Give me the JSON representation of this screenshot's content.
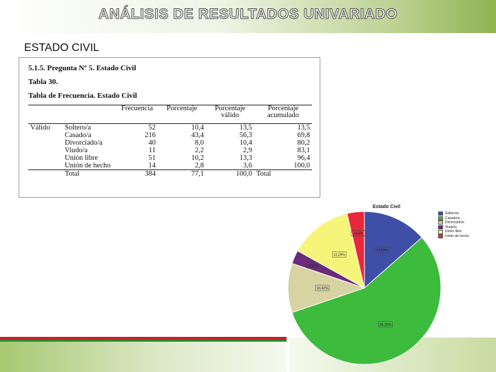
{
  "slide": {
    "title": "ANÁLISIS DE RESULTADOS UNIVARIADO",
    "subtitle": "ESTADO CIVIL"
  },
  "document": {
    "section": "5.1.5.   Pregunta Nº 5. Estado Civil",
    "table_number": "Tabla 30.",
    "table_caption": "Tabla de Frecuencia. Estado Civil",
    "headers": [
      "",
      "",
      "Frecuencia",
      "Porcentaje",
      "Porcentaje válido",
      "Porcentaje acumulado"
    ],
    "group_label": "Válido",
    "rows": [
      {
        "label": "Soltero/a",
        "freq": "52",
        "pct": "10,4",
        "valid": "13,5",
        "cum": "13,5"
      },
      {
        "label": "Casado/a",
        "freq": "216",
        "pct": "43,4",
        "valid": "56,3",
        "cum": "69,8"
      },
      {
        "label": "Divorciado/a",
        "freq": "40",
        "pct": "8,0",
        "valid": "10,4",
        "cum": "80,2"
      },
      {
        "label": "Viudo/a",
        "freq": "11",
        "pct": "2,2",
        "valid": "2,9",
        "cum": "83,1"
      },
      {
        "label": "Unión libre",
        "freq": "51",
        "pct": "10,2",
        "valid": "13,3",
        "cum": "96,4"
      },
      {
        "label": "Unión de hecho",
        "freq": "14",
        "pct": "2,8",
        "valid": "3,6",
        "cum": "100,0"
      }
    ],
    "total": {
      "label": "Total",
      "freq": "384",
      "pct": "77,1",
      "valid": "100,0",
      "cum": "Total"
    }
  },
  "chart_data": {
    "type": "pie",
    "title": "Estado Civil",
    "legend_position": "right",
    "slices": [
      {
        "label": "Soltero/a",
        "value": 13.54,
        "display": "13,54%",
        "color": "#3f4fa8"
      },
      {
        "label": "Casado/a",
        "value": 56.25,
        "display": "56,25%",
        "color": "#3dbb3d"
      },
      {
        "label": "Divorciado/a",
        "value": 10.42,
        "display": "10,42%",
        "color": "#d8d3a3"
      },
      {
        "label": "Viudo/a",
        "value": 2.86,
        "display": "2,86%",
        "color": "#6b2a7a"
      },
      {
        "label": "Unión libre",
        "value": 13.28,
        "display": "13,28%",
        "color": "#f5f57a"
      },
      {
        "label": "Unión de hecho",
        "value": 3.65,
        "display": "3,65%",
        "color": "#e8283a"
      }
    ]
  }
}
